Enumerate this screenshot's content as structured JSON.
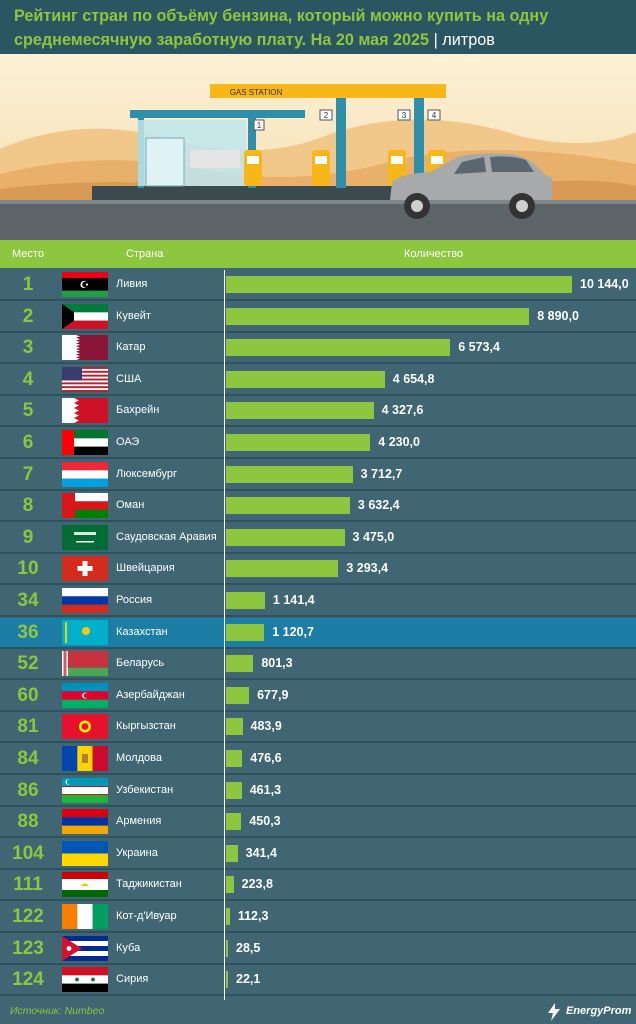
{
  "header": {
    "title": "Рейтинг стран по объёму бензина, который можно купить на одну среднемесячную заработную плату. На 20 мая 2025",
    "separator": "|",
    "unit": "литров"
  },
  "scene": {
    "station_sign": "GAS STATION",
    "pump_numbers": [
      "1",
      "2",
      "3",
      "4"
    ]
  },
  "columns": {
    "rank": "Место",
    "country": "Страна",
    "amount": "Количество"
  },
  "chart_data": {
    "type": "bar",
    "orientation": "horizontal",
    "categories": [
      "Ливия",
      "Кувейт",
      "Катар",
      "США",
      "Бахрейн",
      "ОАЭ",
      "Люксембург",
      "Оман",
      "Саудовская Аравия",
      "Швейцария",
      "Россия",
      "Казахстан",
      "Беларусь",
      "Азербайджан",
      "Кыргызстан",
      "Молдова",
      "Узбекистан",
      "Армения",
      "Украина",
      "Таджикистан",
      "Кот-д'Ивуар",
      "Куба",
      "Сирия"
    ],
    "ranks": [
      "1",
      "2",
      "3",
      "4",
      "5",
      "6",
      "7",
      "8",
      "9",
      "10",
      "34",
      "36",
      "52",
      "60",
      "81",
      "84",
      "86",
      "88",
      "104",
      "111",
      "122",
      "123",
      "124"
    ],
    "values": [
      10144.0,
      8890.0,
      6573.4,
      4654.8,
      4327.6,
      4230.0,
      3712.7,
      3632.4,
      3475.0,
      3293.4,
      1141.4,
      1120.7,
      801.3,
      677.9,
      483.9,
      476.6,
      461.3,
      450.3,
      341.4,
      223.8,
      112.3,
      28.5,
      22.1
    ],
    "value_labels": [
      "10 144,0",
      "8 890,0",
      "6 573,4",
      "4 654,8",
      "4 327,6",
      "4 230,0",
      "3 712,7",
      "3 632,4",
      "3 475,0",
      "3 293,4",
      "1 141,4",
      "1 120,7",
      "801,3",
      "677,9",
      "483,9",
      "476,6",
      "461,3",
      "450,3",
      "341,4",
      "223,8",
      "112,3",
      "28,5",
      "22,1"
    ],
    "flags": [
      "libya",
      "kuwait",
      "qatar",
      "usa",
      "bahrain",
      "uae",
      "luxembourg",
      "oman",
      "saudi-arabia",
      "switzerland",
      "russia",
      "kazakhstan",
      "belarus",
      "azerbaijan",
      "kyrgyzstan",
      "moldova",
      "uzbekistan",
      "armenia",
      "ukraine",
      "tajikistan",
      "ivory-coast",
      "cuba",
      "syria"
    ],
    "highlight": "Казахстан",
    "xlim": [
      0,
      10144
    ],
    "bar_color": "#8dc63f",
    "highlight_color": "#1c7ea5"
  },
  "footer": {
    "source": "Источник: Numbeo",
    "brand": "EnergyProm"
  }
}
